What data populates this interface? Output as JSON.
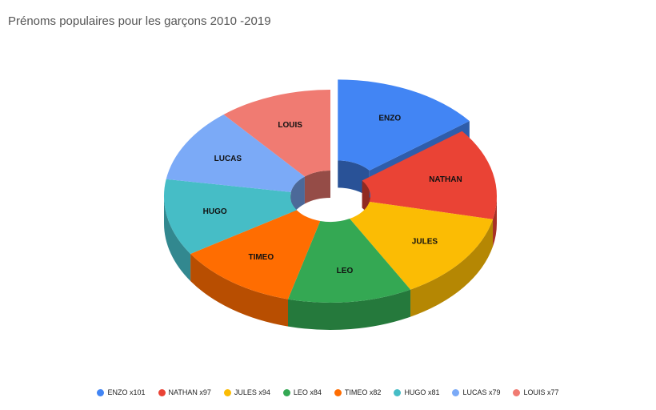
{
  "chart_data": {
    "type": "pie",
    "title": "Prénoms populaires pour les garçons 2010 -2019",
    "series": [
      {
        "name": "ENZO",
        "label": "ENZO",
        "legend": "ENZO x101",
        "value": 101,
        "color": "#4285F4",
        "exploded": true
      },
      {
        "name": "NATHAN",
        "label": "NATHAN",
        "legend": "NATHAN x97",
        "value": 97,
        "color": "#EA4335",
        "exploded": false
      },
      {
        "name": "JULES",
        "label": "JULES",
        "legend": "JULES x94",
        "value": 94,
        "color": "#FBBC04",
        "exploded": false
      },
      {
        "name": "LEO",
        "label": "LEO",
        "legend": "LEO x84",
        "value": 84,
        "color": "#34A853",
        "exploded": false
      },
      {
        "name": "TIMEO",
        "label": "TIMEO",
        "legend": "TIMEO x82",
        "value": 82,
        "color": "#FF6D01",
        "exploded": false
      },
      {
        "name": "HUGO",
        "label": "HUGO",
        "legend": "HUGO x81",
        "value": 81,
        "color": "#46BDC6",
        "exploded": false
      },
      {
        "name": "LUCAS",
        "label": "LUCAS",
        "legend": "LUCAS x79",
        "value": 79,
        "color": "#7BAAF7",
        "exploded": false
      },
      {
        "name": "LOUIS",
        "label": "LOUIS",
        "legend": "LOUIS x77",
        "value": 77,
        "color": "#F07B72",
        "exploded": false
      }
    ],
    "style": "3d-donut",
    "legend_position": "bottom"
  }
}
